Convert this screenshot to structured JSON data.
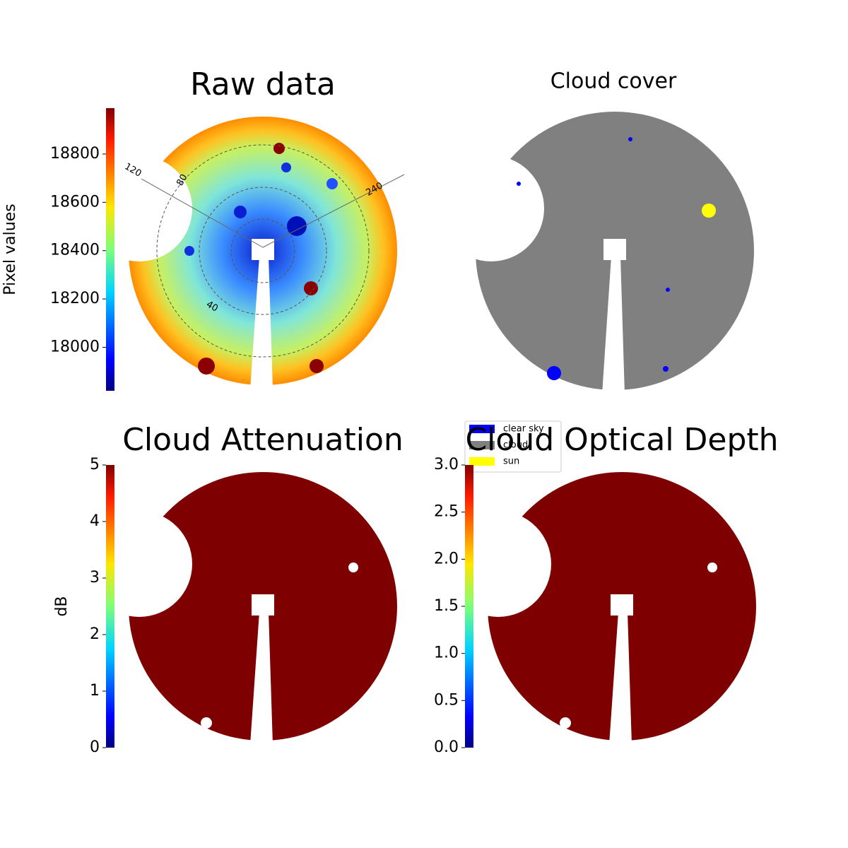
{
  "chart_data": [
    {
      "type": "image",
      "title": "Raw data",
      "ylabel": "Pixel values",
      "colormap": "jet",
      "ylim": [
        17820,
        18990
      ],
      "yticks": [
        18000,
        18200,
        18400,
        18600,
        18800
      ],
      "annotations": [
        "120",
        "80",
        "240",
        "40"
      ]
    },
    {
      "type": "image",
      "title": "Cloud cover",
      "series": [
        {
          "name": "clear sky",
          "color": "#0000ff"
        },
        {
          "name": "cloud",
          "color": "#808080"
        },
        {
          "name": "sun",
          "color": "#ffff00"
        }
      ],
      "legend": "lower-right"
    },
    {
      "type": "image",
      "title": "Cloud Attenuation",
      "ylabel": "dB",
      "colormap": "jet",
      "ylim": [
        0,
        5
      ],
      "yticks": [
        0,
        1,
        2,
        3,
        4,
        5
      ]
    },
    {
      "type": "image",
      "title": "Cloud Optical Depth",
      "colormap": "jet",
      "ylim": [
        0,
        3
      ],
      "yticks": [
        {
          "value": 0,
          "label": "0.0"
        },
        0.5,
        {
          "value": 1,
          "label": "1.0"
        },
        1.5,
        {
          "value": 2,
          "label": "2.0"
        },
        2.5,
        {
          "value": 3,
          "label": "3.0"
        }
      ]
    }
  ]
}
